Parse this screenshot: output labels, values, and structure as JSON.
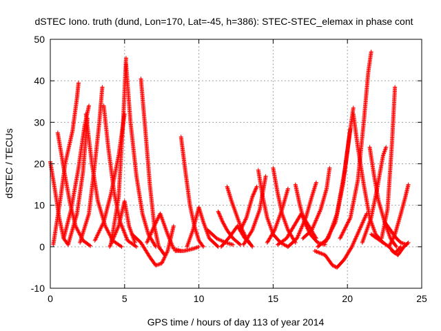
{
  "chart_data": {
    "type": "scatter",
    "title": "dSTEC Iono. truth (dund, Lon=170, Lat=-45, h=386): STEC-STEC_elemax in phase cont",
    "xlabel": "GPS time / hours of day 113 of year 2014",
    "ylabel": "dSTEC  / TECUs",
    "xlim": [
      0,
      25
    ],
    "ylim": [
      -10,
      50
    ],
    "x_ticks": [
      0,
      5,
      10,
      15,
      20,
      25
    ],
    "y_ticks": [
      -10,
      0,
      10,
      20,
      30,
      40,
      50
    ],
    "grid": true,
    "marker": "plus",
    "color": "#ff0000",
    "series": [
      {
        "points": [
          [
            0.0,
            20.5
          ],
          [
            0.3,
            14
          ],
          [
            0.6,
            7
          ],
          [
            0.9,
            2
          ],
          [
            1.2,
            0.5
          ]
        ]
      },
      {
        "points": [
          [
            0.2,
            0.5
          ],
          [
            0.7,
            12
          ],
          [
            1.0,
            20
          ],
          [
            1.5,
            28
          ],
          [
            1.8,
            36
          ],
          [
            1.9,
            39.5
          ]
        ]
      },
      {
        "points": [
          [
            0.5,
            27.5
          ],
          [
            0.9,
            19
          ],
          [
            1.3,
            11
          ],
          [
            1.7,
            5
          ],
          [
            2.2,
            1.5
          ],
          [
            2.7,
            0.2
          ]
        ]
      },
      {
        "points": [
          [
            0.9,
            2
          ],
          [
            1.4,
            9
          ],
          [
            1.9,
            19
          ],
          [
            2.3,
            29
          ],
          [
            2.6,
            34
          ]
        ]
      },
      {
        "points": [
          [
            1.2,
            0.5
          ],
          [
            1.8,
            8
          ],
          [
            2.2,
            18
          ],
          [
            2.5,
            31
          ]
        ]
      },
      {
        "points": [
          [
            2.4,
            32
          ],
          [
            2.8,
            20
          ],
          [
            3.2,
            11
          ],
          [
            3.7,
            5
          ],
          [
            4.2,
            1.5
          ],
          [
            4.8,
            0
          ]
        ]
      },
      {
        "points": [
          [
            2.0,
            1
          ],
          [
            2.6,
            8
          ],
          [
            3.0,
            20
          ],
          [
            3.3,
            30
          ],
          [
            3.5,
            38.5
          ]
        ]
      },
      {
        "points": [
          [
            3.6,
            34
          ],
          [
            3.9,
            24
          ],
          [
            4.3,
            13
          ],
          [
            4.7,
            6
          ],
          [
            5.2,
            1.5
          ],
          [
            5.8,
            0
          ]
        ]
      },
      {
        "points": [
          [
            3.0,
            1.5
          ],
          [
            3.6,
            6
          ],
          [
            4.1,
            13
          ],
          [
            4.6,
            22
          ],
          [
            5.0,
            32
          ]
        ]
      },
      {
        "points": [
          [
            4.1,
            1
          ],
          [
            4.6,
            12
          ],
          [
            4.9,
            30
          ],
          [
            5.1,
            45.5
          ]
        ]
      },
      {
        "points": [
          [
            5.1,
            44
          ],
          [
            5.4,
            30
          ],
          [
            5.8,
            17
          ],
          [
            6.2,
            8
          ],
          [
            6.6,
            3
          ],
          [
            7.1,
            0
          ]
        ]
      },
      {
        "points": [
          [
            4.0,
            0
          ],
          [
            4.6,
            5
          ],
          [
            5.0,
            11
          ],
          [
            5.3,
            5
          ],
          [
            5.7,
            1
          ]
        ]
      },
      {
        "points": [
          [
            6.1,
            40.5
          ],
          [
            6.4,
            28
          ],
          [
            6.7,
            15
          ],
          [
            7.0,
            5
          ],
          [
            7.3,
            0
          ],
          [
            7.7,
            -2
          ]
        ]
      },
      {
        "points": [
          [
            5.5,
            3
          ],
          [
            6.1,
            1
          ],
          [
            6.7,
            -2.5
          ],
          [
            7.1,
            -4.5
          ],
          [
            7.5,
            -4
          ],
          [
            7.9,
            -1
          ],
          [
            8.3,
            5
          ]
        ]
      },
      {
        "points": [
          [
            6.5,
            1
          ],
          [
            7.0,
            5
          ],
          [
            7.4,
            8
          ],
          [
            7.9,
            3
          ],
          [
            8.3,
            -0.5
          ],
          [
            8.8,
            -1
          ]
        ]
      },
      {
        "points": [
          [
            8.8,
            26.5
          ],
          [
            9.1,
            18
          ],
          [
            9.4,
            10
          ],
          [
            9.7,
            5
          ],
          [
            10.0,
            1.5
          ],
          [
            10.3,
            0
          ]
        ]
      },
      {
        "points": [
          [
            8.4,
            -1
          ],
          [
            9.0,
            -1
          ],
          [
            9.6,
            -0.5
          ],
          [
            10.0,
            0
          ]
        ]
      },
      {
        "points": [
          [
            9.2,
            0
          ],
          [
            9.6,
            4
          ],
          [
            10.0,
            9.5
          ],
          [
            10.3,
            6
          ],
          [
            10.7,
            2
          ],
          [
            11.3,
            0
          ]
        ]
      },
      {
        "points": [
          [
            10.6,
            4
          ],
          [
            11.2,
            2
          ],
          [
            11.8,
            1
          ],
          [
            12.3,
            0.5
          ]
        ]
      },
      {
        "points": [
          [
            11.3,
            8.5
          ],
          [
            11.6,
            6
          ],
          [
            11.9,
            4
          ],
          [
            12.3,
            2
          ],
          [
            12.8,
            0.5
          ]
        ]
      },
      {
        "points": [
          [
            11.9,
            14.5
          ],
          [
            12.2,
            11
          ],
          [
            12.5,
            8
          ],
          [
            12.8,
            5
          ],
          [
            13.2,
            2
          ],
          [
            13.6,
            0
          ]
        ]
      },
      {
        "points": [
          [
            11.5,
            0
          ],
          [
            12.1,
            2.5
          ],
          [
            12.6,
            5
          ],
          [
            13.1,
            2
          ],
          [
            13.5,
            0.5
          ]
        ]
      },
      {
        "points": [
          [
            12.8,
            4
          ],
          [
            13.2,
            7
          ],
          [
            13.6,
            12
          ],
          [
            13.9,
            14.5
          ]
        ]
      },
      {
        "points": [
          [
            14.0,
            18.5
          ],
          [
            14.3,
            12
          ],
          [
            14.6,
            7
          ],
          [
            15.0,
            3
          ],
          [
            15.5,
            1
          ],
          [
            16.0,
            0
          ]
        ]
      },
      {
        "points": [
          [
            13.0,
            0.5
          ],
          [
            13.6,
            4
          ],
          [
            14.1,
            9
          ],
          [
            14.5,
            17
          ]
        ]
      },
      {
        "points": [
          [
            15.0,
            19
          ],
          [
            15.3,
            13
          ],
          [
            15.6,
            8
          ],
          [
            16.0,
            4
          ],
          [
            16.5,
            1
          ]
        ]
      },
      {
        "points": [
          [
            14.6,
            1
          ],
          [
            15.1,
            4
          ],
          [
            15.6,
            9
          ],
          [
            16.0,
            14
          ]
        ]
      },
      {
        "points": [
          [
            16.5,
            15
          ],
          [
            16.8,
            10
          ],
          [
            17.1,
            6
          ],
          [
            17.5,
            3
          ],
          [
            18.0,
            1
          ],
          [
            18.5,
            0.5
          ]
        ]
      },
      {
        "points": [
          [
            15.3,
            0.5
          ],
          [
            15.9,
            2
          ],
          [
            16.4,
            5
          ],
          [
            16.9,
            8
          ],
          [
            17.4,
            5
          ],
          [
            17.9,
            2
          ]
        ]
      },
      {
        "points": [
          [
            16.0,
            0
          ],
          [
            16.6,
            2
          ],
          [
            17.2,
            7
          ],
          [
            17.6,
            12
          ],
          [
            17.9,
            15.5
          ]
        ]
      },
      {
        "points": [
          [
            17.0,
            2
          ],
          [
            17.6,
            4
          ],
          [
            18.2,
            9
          ],
          [
            18.6,
            14
          ],
          [
            18.8,
            19
          ]
        ]
      },
      {
        "points": [
          [
            17.8,
            -1
          ],
          [
            18.5,
            -2
          ],
          [
            19.0,
            -4.5
          ],
          [
            19.3,
            -5
          ],
          [
            19.8,
            -3
          ],
          [
            20.3,
            0
          ],
          [
            20.8,
            4
          ],
          [
            21.3,
            8
          ]
        ]
      },
      {
        "points": [
          [
            18.0,
            0
          ],
          [
            18.7,
            2
          ],
          [
            19.3,
            8
          ],
          [
            19.8,
            18
          ],
          [
            20.1,
            26
          ],
          [
            20.4,
            33.5
          ]
        ]
      },
      {
        "points": [
          [
            18.5,
            1
          ],
          [
            19.2,
            6
          ],
          [
            19.7,
            15
          ],
          [
            20.0,
            23
          ],
          [
            20.2,
            28.5
          ]
        ]
      },
      {
        "points": [
          [
            19.5,
            2
          ],
          [
            20.2,
            7
          ],
          [
            20.7,
            16
          ],
          [
            21.1,
            30
          ],
          [
            21.4,
            42
          ],
          [
            21.6,
            47
          ]
        ]
      },
      {
        "points": [
          [
            20.4,
            32
          ],
          [
            20.7,
            24
          ],
          [
            21.1,
            15
          ],
          [
            21.5,
            7
          ],
          [
            21.9,
            3
          ],
          [
            22.4,
            1
          ]
        ]
      },
      {
        "points": [
          [
            21.5,
            24
          ],
          [
            21.8,
            17
          ],
          [
            22.1,
            11
          ],
          [
            22.5,
            6
          ],
          [
            22.9,
            2
          ],
          [
            23.3,
            0
          ]
        ]
      },
      {
        "points": [
          [
            21.6,
            3
          ],
          [
            22.0,
            2
          ],
          [
            22.4,
            1
          ],
          [
            22.8,
            0
          ],
          [
            23.2,
            -1.5
          ],
          [
            23.6,
            0
          ]
        ]
      },
      {
        "points": [
          [
            21.0,
            1
          ],
          [
            21.6,
            7
          ],
          [
            22.0,
            14
          ],
          [
            22.4,
            22
          ],
          [
            22.6,
            24
          ]
        ]
      },
      {
        "points": [
          [
            22.3,
            2
          ],
          [
            22.7,
            9
          ],
          [
            23.0,
            25
          ],
          [
            23.2,
            38.5
          ]
        ]
      },
      {
        "points": [
          [
            22.5,
            6
          ],
          [
            22.9,
            4
          ],
          [
            23.3,
            2
          ],
          [
            23.6,
            1
          ],
          [
            24.0,
            0.5
          ]
        ]
      },
      {
        "points": [
          [
            22.8,
            0
          ],
          [
            23.2,
            3
          ],
          [
            23.6,
            8
          ],
          [
            23.9,
            12
          ],
          [
            24.1,
            15
          ]
        ]
      },
      {
        "points": [
          [
            23.0,
            -1
          ],
          [
            23.4,
            -2
          ],
          [
            23.8,
            0
          ],
          [
            24.1,
            1
          ]
        ]
      }
    ]
  }
}
